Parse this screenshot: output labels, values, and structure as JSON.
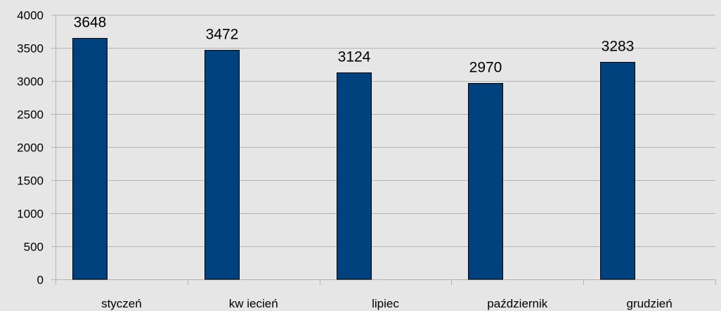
{
  "chart_data": {
    "type": "bar",
    "categories": [
      "styczeń",
      "kw iecień",
      "lipiec",
      "październik",
      "grudzień"
    ],
    "values": [
      3648,
      3472,
      3124,
      2970,
      3283
    ],
    "data_labels": [
      "3648",
      "3472",
      "3124",
      "2970",
      "3283"
    ],
    "title": "",
    "xlabel": "",
    "ylabel": "",
    "ylim": [
      0,
      4000
    ],
    "yticks": [
      0,
      500,
      1000,
      1500,
      2000,
      2500,
      3000,
      3500,
      4000
    ],
    "ytick_labels": [
      "0",
      "500",
      "1000",
      "1500",
      "2000",
      "2500",
      "3000",
      "3500",
      "4000"
    ],
    "grid": "horizontal",
    "legend": "none",
    "colors": {
      "bar": "#00427e",
      "background": "#e6e6e6",
      "grid": "#b3b3b3"
    }
  }
}
